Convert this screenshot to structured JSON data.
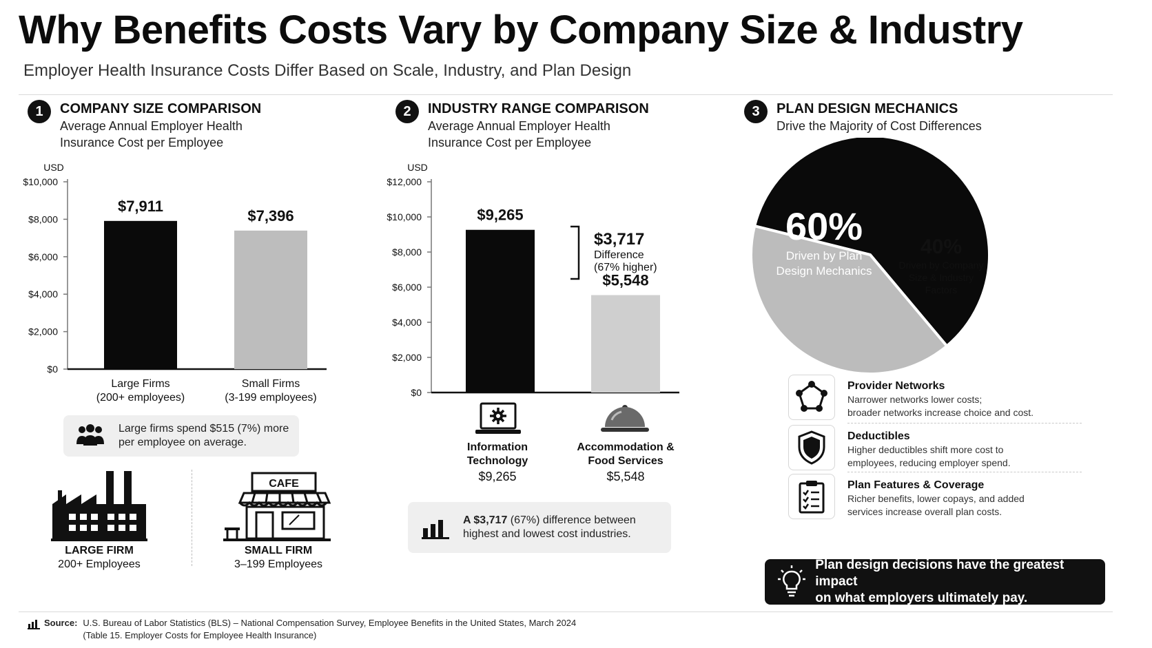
{
  "header": {
    "title": "Why Benefits Costs Vary by Company Size & Industry",
    "subtitle": "Employer Health Insurance Costs Differ Based on Scale, Industry, and Plan Design"
  },
  "section1": {
    "number": "1",
    "title": "COMPANY SIZE COMPARISON",
    "subtitle_line1": "Average Annual Employer Health",
    "subtitle_line2": "Insurance Cost per Employee",
    "callout": "Large firms spend $515 (7%) more per employee on average.",
    "icons": [
      {
        "name": "LARGE FIRM",
        "detail": "200+ Employees"
      },
      {
        "name": "SMALL FIRM",
        "detail": "3–199 Employees"
      }
    ],
    "cafe_sign": "CAFE"
  },
  "section2": {
    "number": "2",
    "title": "INDUSTRY RANGE COMPARISON",
    "subtitle_line1": "Average Annual Employer Health",
    "subtitle_line2": "Insurance Cost per Employee",
    "difference_value": "$3,717",
    "difference_label": "Difference",
    "difference_pct": "(67% higher)",
    "industries": [
      {
        "line1": "Information",
        "line2": "Technology",
        "value": "$9,265"
      },
      {
        "line1": "Accommodation &",
        "line2": "Food Services",
        "value": "$5,548"
      }
    ],
    "callout_bold": "A $3,717",
    "callout_line1_rest": " (67%) difference between",
    "callout_line2": "highest and lowest cost industries."
  },
  "section3": {
    "number": "3",
    "title": "PLAN DESIGN MECHANICS",
    "subtitle_line1": "Drive the Majority of Cost Differences",
    "features": [
      {
        "title": "Provider Networks",
        "line1": "Narrower networks lower costs;",
        "line2": "broader networks increase choice and cost.",
        "icon": "network-icon"
      },
      {
        "title": "Deductibles",
        "line1": "Higher deductibles shift more cost to",
        "line2": "employees, reducing employer spend.",
        "icon": "shield-icon"
      },
      {
        "title": "Plan Features & Coverage",
        "line1": "Richer benefits, lower copays, and added",
        "line2": "services increase overall plan costs.",
        "icon": "clipboard-icon"
      }
    ],
    "banner_line1": "Plan design decisions have the greatest impact",
    "banner_line2": "on what employers ultimately pay."
  },
  "source": {
    "label": "Source:",
    "line1": "U.S. Bureau of Labor Statistics (BLS) – National Compensation Survey, Employee Benefits in the United States, March 2024",
    "line2": "(Table 15. Employer Costs for Employee Health Insurance)"
  },
  "chart_data": [
    {
      "type": "bar",
      "ylabel": "USD",
      "ylim": [
        0,
        10000
      ],
      "yticks": [
        0,
        2000,
        4000,
        6000,
        8000,
        10000
      ],
      "ytick_labels": [
        "$0",
        "$2,000",
        "$4,000",
        "$6,000",
        "$8,000",
        "$10,000"
      ],
      "categories": [
        "Large Firms",
        "Small Firms"
      ],
      "category_details": [
        "(200+ employees)",
        "(3-199 employees)"
      ],
      "values": [
        7911,
        7396
      ],
      "value_labels": [
        "$7,911",
        "$7,396"
      ],
      "colors": [
        "#0a0a0a",
        "#bdbdbd"
      ]
    },
    {
      "type": "bar",
      "ylabel": "USD",
      "ylim": [
        0,
        12000
      ],
      "yticks": [
        0,
        2000,
        4000,
        6000,
        8000,
        10000,
        12000
      ],
      "ytick_labels": [
        "$0",
        "$2,000",
        "$4,000",
        "$6,000",
        "$8,000",
        "$10,000",
        "$12,000"
      ],
      "categories": [
        "Information Technology",
        "Accommodation & Food Services"
      ],
      "values": [
        9265,
        5548
      ],
      "value_labels": [
        "$9,265",
        "$5,548"
      ],
      "colors": [
        "#0a0a0a",
        "#cfcfcf"
      ]
    },
    {
      "type": "pie",
      "values": [
        60,
        40
      ],
      "labels": [
        "60%",
        "40%"
      ],
      "slices": [
        {
          "pct": "60%",
          "line1": "Driven by Plan",
          "line2": "Design Mechanics",
          "line3": ""
        },
        {
          "pct": "40%",
          "line1": "Driven by Company",
          "line2": "Size & Industry",
          "line3": "Factors"
        }
      ],
      "colors": [
        "#0a0a0a",
        "#bcbcbc"
      ]
    }
  ]
}
